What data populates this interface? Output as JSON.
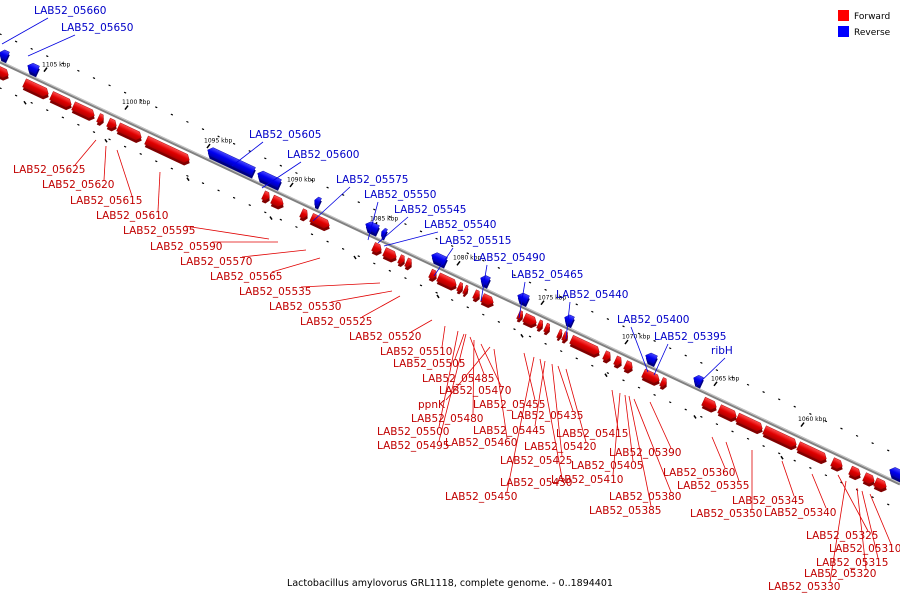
{
  "caption": "Lactobacillus amylovorus GRL1118, complete genome. - 0..1894401",
  "legend": [
    {
      "label": "Forward",
      "color": "#ff0000"
    },
    {
      "label": "Reverse",
      "color": "#0000ff"
    }
  ],
  "colors": {
    "forward": "#ff0000",
    "reverse": "#0000ff",
    "forward_label": "#c00000",
    "reverse_label": "#0000c8",
    "backbone": "#808080"
  },
  "ticks": [
    "1105 kbp",
    "1100 kbp",
    "1095 kbp",
    "1090 kbp",
    "1085 kbp",
    "1080 kbp",
    "1075 kbp",
    "1070 kbp",
    "1065 kbp",
    "1060 kbp"
  ],
  "reverse_labels": [
    "LAB52_05660",
    "LAB52_05650",
    "LAB52_05605",
    "LAB52_05600",
    "LAB52_05575",
    "LAB52_05550",
    "LAB52_05545",
    "LAB52_05540",
    "LAB52_05515",
    "LAB52_05490",
    "LAB52_05465",
    "LAB52_05440",
    "LAB52_05400",
    "LAB52_05395",
    "ribH"
  ],
  "forward_labels": [
    "LAB52_05625",
    "LAB52_05620",
    "LAB52_05615",
    "LAB52_05610",
    "LAB52_05595",
    "LAB52_05590",
    "LAB52_05570",
    "LAB52_05565",
    "LAB52_05535",
    "LAB52_05530",
    "LAB52_05525",
    "LAB52_05520",
    "LAB52_05510",
    "LAB52_05505",
    "LAB52_05485",
    "LAB52_05470",
    "ppnK",
    "LAB52_05455",
    "LAB52_05480",
    "LAB52_05500",
    "LAB52_05445",
    "LAB52_05495",
    "LAB52_05460",
    "LAB52_05435",
    "LAB52_05415",
    "LAB52_05420",
    "LAB52_05425",
    "LAB52_05405",
    "LAB52_05390",
    "LAB52_05410",
    "LAB52_05430",
    "LAB52_05450",
    "LAB52_05380",
    "LAB52_05385",
    "LAB52_05360",
    "LAB52_05355",
    "LAB52_05350",
    "LAB52_05345",
    "LAB52_05340",
    "LAB52_05325",
    "LAB52_05310",
    "LAB52_05315",
    "LAB52_05320",
    "LAB52_05330"
  ]
}
